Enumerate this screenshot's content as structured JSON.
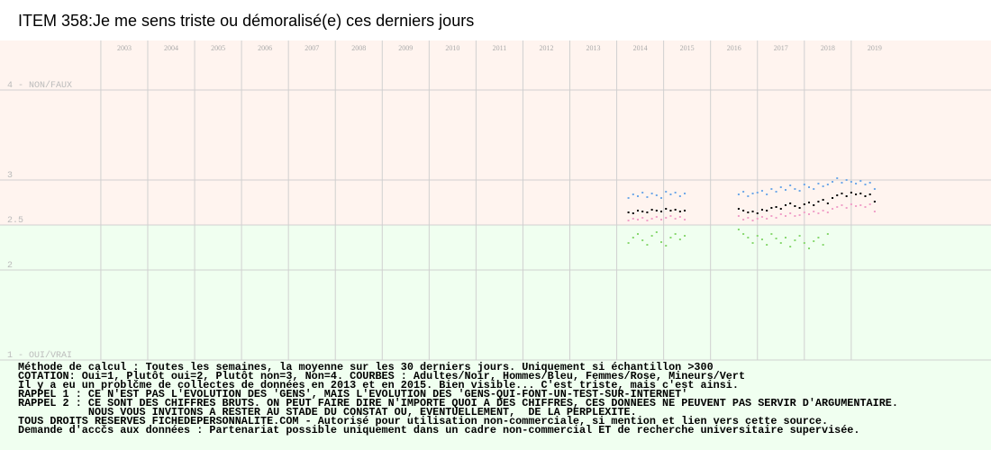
{
  "chart_data": {
    "type": "scatter",
    "title": "ITEM 358:Je me sens triste ou démoralisé(e) ces derniers jours",
    "x": [
      2014.25,
      2014.35,
      2014.45,
      2014.55,
      2014.65,
      2014.75,
      2014.85,
      2014.95,
      2015.05,
      2015.15,
      2015.25,
      2015.35,
      2015.45,
      2016.6,
      2016.7,
      2016.8,
      2016.9,
      2017.0,
      2017.1,
      2017.2,
      2017.3,
      2017.4,
      2017.5,
      2017.6,
      2017.7,
      2017.8,
      2017.9,
      2018.0,
      2018.1,
      2018.2,
      2018.3,
      2018.4,
      2018.5,
      2018.6,
      2018.7,
      2018.8,
      2018.9,
      2019.0,
      2019.1,
      2019.2,
      2019.3,
      2019.4,
      2019.5
    ],
    "series": [
      {
        "color": "#6fa8e8",
        "values": [
          2.8,
          2.84,
          2.82,
          2.86,
          2.81,
          2.85,
          2.83,
          2.8,
          2.87,
          2.84,
          2.86,
          2.82,
          2.85,
          2.84,
          2.87,
          2.82,
          2.85,
          2.86,
          2.88,
          2.84,
          2.9,
          2.87,
          2.92,
          2.89,
          2.94,
          2.9,
          2.88,
          2.95,
          2.92,
          2.9,
          2.96,
          2.93,
          2.95,
          2.98,
          3.02,
          2.97,
          3.0,
          2.98,
          2.96,
          2.99,
          2.95,
          2.97,
          2.9
        ]
      },
      {
        "color": "#f0a0c8",
        "values": [
          2.55,
          2.57,
          2.56,
          2.58,
          2.55,
          2.57,
          2.59,
          2.56,
          2.58,
          2.6,
          2.57,
          2.59,
          2.56,
          2.6,
          2.56,
          2.58,
          2.55,
          2.57,
          2.59,
          2.57,
          2.6,
          2.58,
          2.62,
          2.6,
          2.63,
          2.6,
          2.61,
          2.64,
          2.62,
          2.65,
          2.63,
          2.66,
          2.64,
          2.68,
          2.7,
          2.72,
          2.69,
          2.73,
          2.71,
          2.72,
          2.7,
          2.73,
          2.65
        ]
      },
      {
        "color": "#88d870",
        "values": [
          2.3,
          2.36,
          2.4,
          2.33,
          2.28,
          2.38,
          2.42,
          2.31,
          2.27,
          2.36,
          2.4,
          2.34,
          2.38,
          2.45,
          2.4,
          2.36,
          2.3,
          2.38,
          2.34,
          2.28,
          2.4,
          2.35,
          2.3,
          2.36,
          2.26,
          2.33,
          2.38,
          2.3,
          2.24,
          2.32,
          2.36,
          2.28,
          2.4,
          null,
          null,
          null,
          null,
          null,
          null,
          null,
          null,
          null,
          null
        ]
      },
      {
        "color": "#000000",
        "values": [
          2.64,
          2.63,
          2.66,
          2.65,
          2.64,
          2.67,
          2.66,
          2.65,
          2.68,
          2.66,
          2.67,
          2.65,
          2.66,
          2.68,
          2.66,
          2.64,
          2.65,
          2.63,
          2.67,
          2.66,
          2.69,
          2.7,
          2.68,
          2.72,
          2.74,
          2.71,
          2.69,
          2.73,
          2.75,
          2.72,
          2.76,
          2.78,
          2.74,
          2.8,
          2.83,
          2.85,
          2.82,
          2.86,
          2.84,
          2.85,
          2.82,
          2.84,
          2.76
        ]
      }
    ],
    "xlim": [
      2000.85,
      2021.98
    ],
    "xticks": [
      2003,
      2004,
      2005,
      2006,
      2007,
      2008,
      2009,
      2010,
      2011,
      2012,
      2013,
      2014,
      2015,
      2016,
      2017,
      2018,
      2019
    ],
    "ylim": [
      1,
      4.55
    ],
    "yticks": [
      {
        "value": 1,
        "label": "1 - OUI/VRAI"
      },
      2,
      2.5,
      3,
      {
        "value": 4,
        "label": "4 - NON/FAUX"
      }
    ],
    "grid": true,
    "regions": [
      {
        "from": 2.5,
        "to": 4.55,
        "color": "#fff4ef"
      },
      {
        "from": 1,
        "to": 2.5,
        "color": "#f0fff0"
      }
    ],
    "annotations": [
      "Méthode de calcul : Toutes les semaines, la moyenne sur les 30 derniers jours. Uniquement si échantillon >300",
      "COTATION: Oui=1, Plutôt oui=2, Plutôt non=3, Non=4. COURBES : Adultes/Noir, Hommes/Bleu, Femmes/Rose, Mineurs/Vert",
      "Il y a eu un problčme de collectes de données en 2013 et en 2015. Bien visible... C'est triste, mais c'est ainsi.",
      "RAPPEL 1 : CE N'EST PAS L'EVOLUTION DES 'GENS', MAIS L'EVOLUTION DES 'GENS-QUI-FONT-UN-TEST-SUR-INTERNET'",
      "RAPPEL 2 : CE SONT DES CHIFFRES BRUTS. ON PEUT FAIRE DIRE N'IMPORTE QUOI A DES CHIFFRES, CES DONNEES NE PEUVENT PAS SERVIR D'ARGUMENTAIRE.",
      "           NOUS VOUS INVITONS A RESTER AU STADE DU CONSTAT OU, EVENTUELLEMENT,  DE LA PERPLEXITE.",
      "TOUS DROITS RESERVES FICHEDEPERSONNALITE.COM - Autorisé pour utilisation non-commerciale, si mention et lien vers cette source.",
      "Demande d'accčs aux données : Partenariat possible uniquement dans un cadre non-commercial ET de recherche universitaire supervisée."
    ]
  }
}
